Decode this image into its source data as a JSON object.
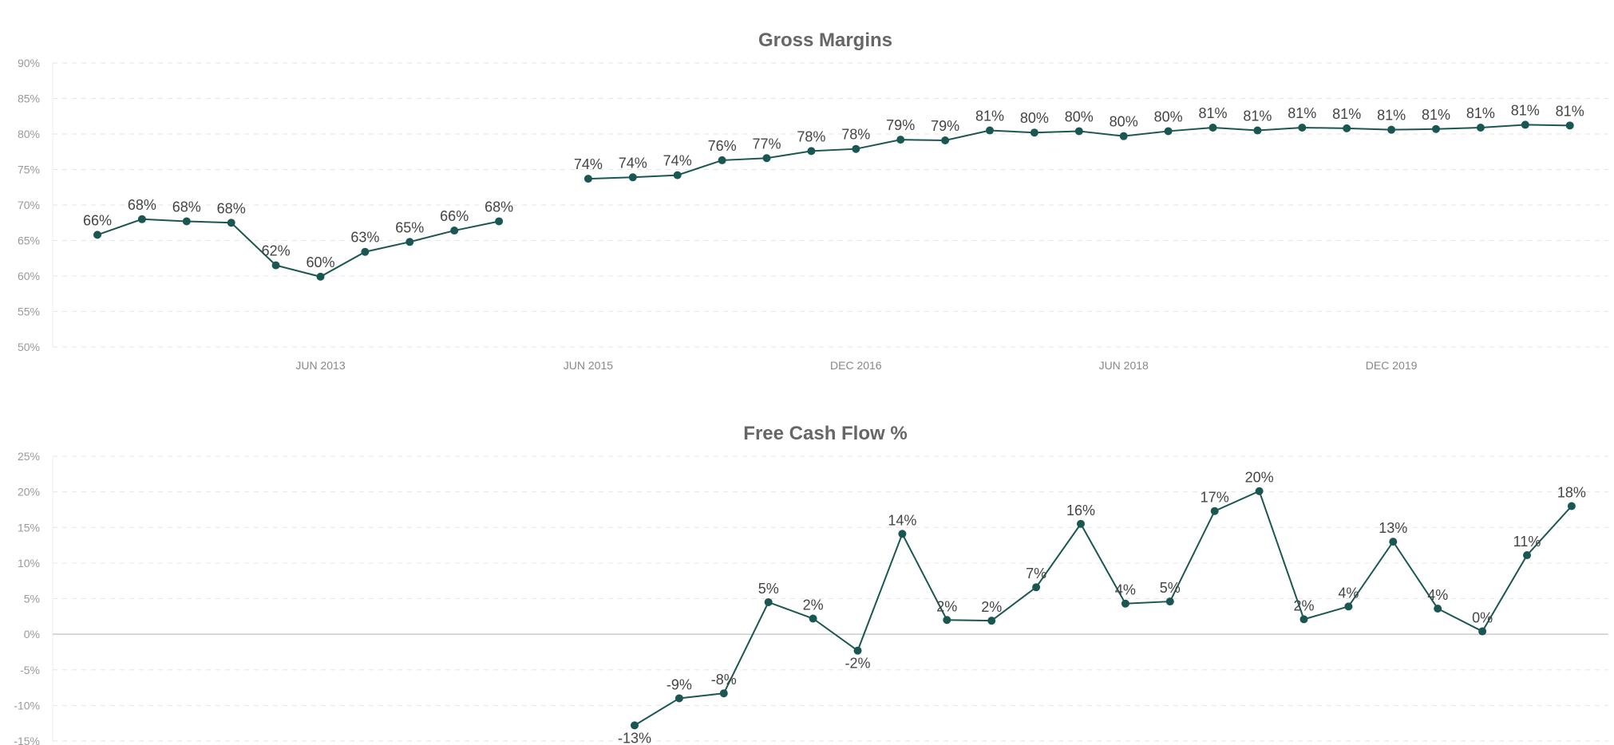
{
  "colors": {
    "series": "#1b5752"
  },
  "chart_data": [
    {
      "type": "line",
      "title": "Gross Margins",
      "ylim": [
        50,
        90
      ],
      "yticks": [
        {
          "v": 50,
          "label": "50%"
        },
        {
          "v": 55,
          "label": "55%"
        },
        {
          "v": 60,
          "label": "60%"
        },
        {
          "v": 65,
          "label": "65%"
        },
        {
          "v": 70,
          "label": "70%"
        },
        {
          "v": 75,
          "label": "75%"
        },
        {
          "v": 80,
          "label": "80%"
        },
        {
          "v": 85,
          "label": "85%"
        },
        {
          "v": 90,
          "label": "90%"
        }
      ],
      "xticks": [
        {
          "i": 5,
          "label": "JUN 2013"
        },
        {
          "i": 11,
          "label": "JUN 2015"
        },
        {
          "i": 17,
          "label": "DEC 2016"
        },
        {
          "i": 23,
          "label": "JUN 2018"
        },
        {
          "i": 29,
          "label": "DEC 2019"
        }
      ],
      "grid": true,
      "points": [
        {
          "y": 65.8,
          "label": "66%"
        },
        {
          "y": 68.0,
          "label": "68%"
        },
        {
          "y": 67.7,
          "label": "68%"
        },
        {
          "y": 67.5,
          "label": "68%"
        },
        {
          "y": 61.5,
          "label": "62%"
        },
        {
          "y": 59.9,
          "label": "60%"
        },
        {
          "y": 63.4,
          "label": "63%"
        },
        {
          "y": 64.8,
          "label": "65%"
        },
        {
          "y": 66.4,
          "label": "66%"
        },
        {
          "y": 67.7,
          "label": "68%"
        },
        {
          "y": null,
          "label": ""
        },
        {
          "y": 73.7,
          "label": "74%"
        },
        {
          "y": 73.9,
          "label": "74%"
        },
        {
          "y": 74.2,
          "label": "74%"
        },
        {
          "y": 76.3,
          "label": "76%"
        },
        {
          "y": 76.6,
          "label": "77%"
        },
        {
          "y": 77.6,
          "label": "78%"
        },
        {
          "y": 77.9,
          "label": "78%"
        },
        {
          "y": 79.2,
          "label": "79%"
        },
        {
          "y": 79.1,
          "label": "79%"
        },
        {
          "y": 80.5,
          "label": "81%"
        },
        {
          "y": 80.2,
          "label": "80%"
        },
        {
          "y": 80.4,
          "label": "80%"
        },
        {
          "y": 79.7,
          "label": "80%"
        },
        {
          "y": 80.4,
          "label": "80%"
        },
        {
          "y": 80.9,
          "label": "81%"
        },
        {
          "y": 80.5,
          "label": "81%"
        },
        {
          "y": 80.9,
          "label": "81%"
        },
        {
          "y": 80.8,
          "label": "81%"
        },
        {
          "y": 80.6,
          "label": "81%"
        },
        {
          "y": 80.7,
          "label": "81%"
        },
        {
          "y": 80.9,
          "label": "81%"
        },
        {
          "y": 81.3,
          "label": "81%"
        },
        {
          "y": 81.2,
          "label": "81%"
        }
      ]
    },
    {
      "type": "line",
      "title": "Free Cash Flow %",
      "ylim": [
        -15,
        25
      ],
      "yticks": [
        {
          "v": -15,
          "label": "-15%"
        },
        {
          "v": -10,
          "label": "-10%"
        },
        {
          "v": -5,
          "label": "-5%"
        },
        {
          "v": 0,
          "label": "0%"
        },
        {
          "v": 5,
          "label": "5%"
        },
        {
          "v": 10,
          "label": "10%"
        },
        {
          "v": 15,
          "label": "15%"
        },
        {
          "v": 20,
          "label": "20%"
        },
        {
          "v": 25,
          "label": "25%"
        }
      ],
      "grid": true,
      "points": [
        {
          "y": -12.8,
          "label": "-13%"
        },
        {
          "y": -9.0,
          "label": "-9%"
        },
        {
          "y": -8.3,
          "label": "-8%"
        },
        {
          "y": 4.5,
          "label": "5%"
        },
        {
          "y": 2.2,
          "label": "2%"
        },
        {
          "y": -2.3,
          "label": "-2%"
        },
        {
          "y": 14.1,
          "label": "14%"
        },
        {
          "y": 2.0,
          "label": "2%"
        },
        {
          "y": 1.9,
          "label": "2%"
        },
        {
          "y": 6.6,
          "label": "7%"
        },
        {
          "y": 15.5,
          "label": "16%"
        },
        {
          "y": 4.3,
          "label": "4%"
        },
        {
          "y": 4.6,
          "label": "5%"
        },
        {
          "y": 17.3,
          "label": "17%"
        },
        {
          "y": 20.1,
          "label": "20%"
        },
        {
          "y": 2.1,
          "label": "2%"
        },
        {
          "y": 3.9,
          "label": "4%"
        },
        {
          "y": 13.0,
          "label": "13%"
        },
        {
          "y": 3.6,
          "label": "4%"
        },
        {
          "y": 0.4,
          "label": "0%"
        },
        {
          "y": 11.1,
          "label": "11%"
        },
        {
          "y": 18.0,
          "label": "18%"
        }
      ]
    }
  ]
}
